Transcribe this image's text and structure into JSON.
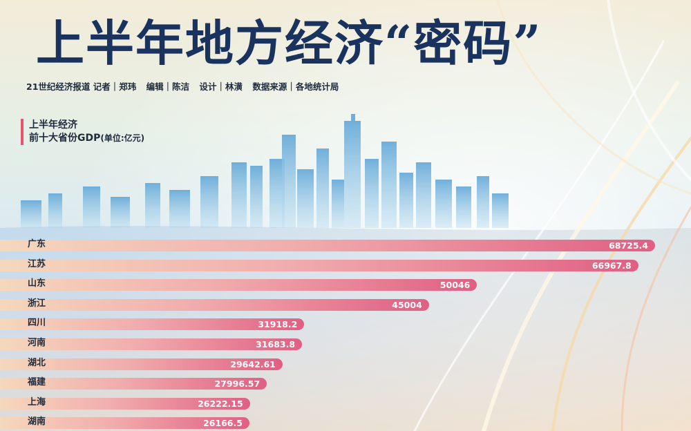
{
  "headline": "上半年地方经济“密码”",
  "credits": [
    "21世纪经济报道 记者｜郑玮",
    "编辑｜陈洁",
    "设计｜林潢",
    "数据来源｜各地统计局"
  ],
  "subhead": {
    "line1": "上半年经济",
    "line2": "前十大省份GDP",
    "unit": "(单位:亿元)"
  },
  "colors": {
    "title": "#19325e",
    "accent": "#e8546e",
    "bar_end": "#e05f83",
    "bar_start": "#f7d8ba"
  },
  "chart_data": {
    "type": "bar",
    "orientation": "horizontal",
    "title": "上半年经济 前十大省份GDP(单位:亿元)",
    "categories": [
      "广东",
      "江苏",
      "山东",
      "浙江",
      "四川",
      "河南",
      "湖北",
      "福建",
      "上海",
      "湖南"
    ],
    "values": [
      68725.4,
      66967.8,
      50046,
      45004,
      31918.2,
      31683.8,
      29642.61,
      27996.57,
      26222.15,
      26166.5
    ],
    "value_labels": [
      "68725.4",
      "66967.8",
      "50046",
      "45004",
      "31918.2",
      "31683.8",
      "29642.61",
      "27996.57",
      "26222.15",
      "26166.5"
    ],
    "grid": false,
    "legend": "none"
  }
}
